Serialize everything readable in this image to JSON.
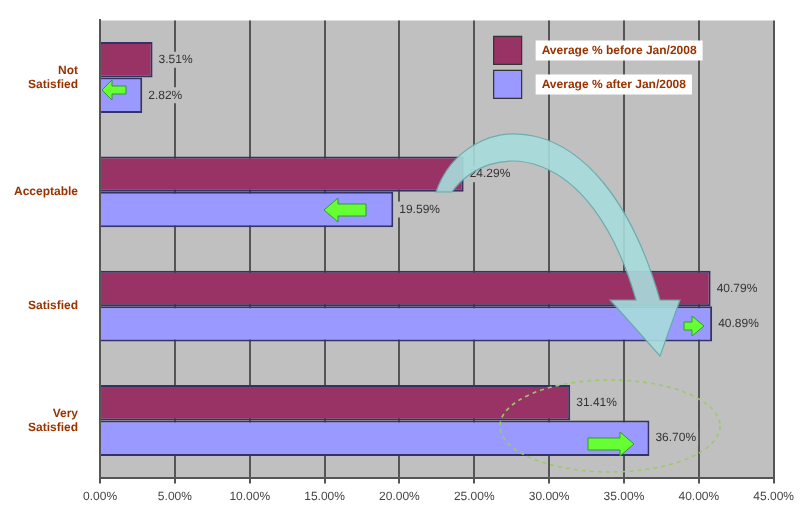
{
  "chart_data": {
    "type": "bar",
    "orientation": "horizontal",
    "categories": [
      "Not Satisfied",
      "Acceptable",
      "Satisfied",
      "Very Satisfied"
    ],
    "series": [
      {
        "name": "Average % before Jan/2008",
        "color": "#993366",
        "values": [
          3.51,
          24.29,
          40.79,
          31.41
        ],
        "value_labels": [
          "3.51%",
          "24.29%",
          "40.79%",
          "31.41%"
        ]
      },
      {
        "name": "Average % after Jan/2008",
        "color": "#9999ff",
        "values": [
          2.82,
          19.59,
          40.89,
          36.7
        ],
        "value_labels": [
          "2.82%",
          "19.59%",
          "40.89%",
          "36.70%"
        ]
      }
    ],
    "xlim": [
      0,
      45
    ],
    "xticks": [
      {
        "value": 0,
        "label": "0.00%"
      },
      {
        "value": 5,
        "label": "5.00%"
      },
      {
        "value": 10,
        "label": "10.00%"
      },
      {
        "value": 15,
        "label": "15.00%"
      },
      {
        "value": 20,
        "label": "20.00%"
      },
      {
        "value": 25,
        "label": "25.00%"
      },
      {
        "value": 30,
        "label": "30.00%"
      },
      {
        "value": 35,
        "label": "35.00%"
      },
      {
        "value": 40,
        "label": "40.00%"
      },
      {
        "value": 45,
        "label": "45.00%"
      }
    ],
    "grid": "x",
    "legend": "top right"
  }
}
